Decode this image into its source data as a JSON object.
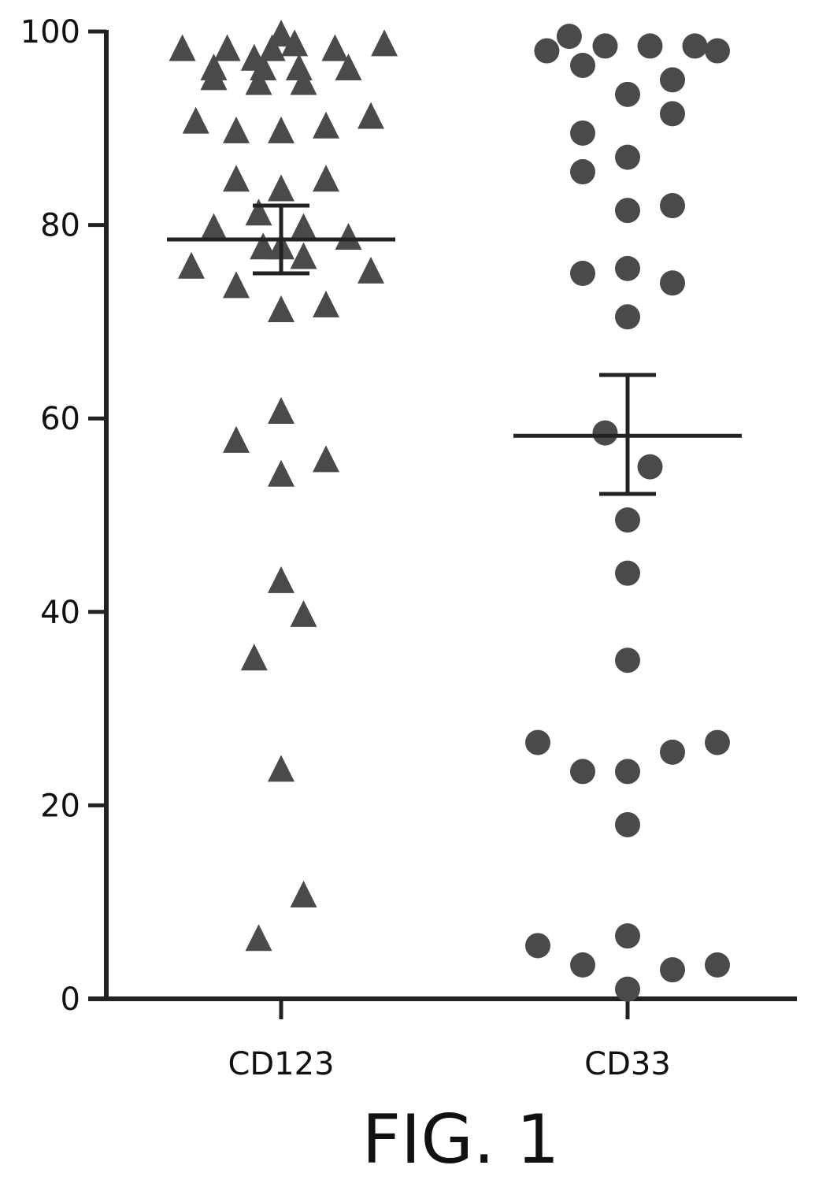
{
  "caption": "FIG. 1",
  "colors": {
    "marker": "#4a4a4a",
    "axis": "#222222",
    "text": "#111111"
  },
  "chart_data": {
    "type": "scatter",
    "title": "",
    "xlabel": "",
    "ylabel": "",
    "ylim": [
      0,
      100
    ],
    "y_ticks": [
      {
        "value": 0,
        "label": "0"
      },
      {
        "value": 20,
        "label": "20"
      },
      {
        "value": 40,
        "label": "40"
      },
      {
        "value": 60,
        "label": "60"
      },
      {
        "value": 80,
        "label": "80"
      },
      {
        "value": 100,
        "label": "100"
      }
    ],
    "categories": [
      "CD123",
      "CD33"
    ],
    "grid": false,
    "series": [
      {
        "category": "CD123",
        "marker": "triangle",
        "mean": 78.5,
        "error_low": 75.0,
        "error_high": 82.0,
        "points": [
          {
            "slot": -2.2,
            "y": 98
          },
          {
            "slot": -1.2,
            "y": 98
          },
          {
            "slot": -1.5,
            "y": 96
          },
          {
            "slot": -1.5,
            "y": 95
          },
          {
            "slot": -0.6,
            "y": 97
          },
          {
            "slot": -0.2,
            "y": 98
          },
          {
            "slot": 0.0,
            "y": 99.5
          },
          {
            "slot": 0.3,
            "y": 98.5
          },
          {
            "slot": -0.4,
            "y": 96
          },
          {
            "slot": 0.4,
            "y": 96
          },
          {
            "slot": -0.5,
            "y": 94.5
          },
          {
            "slot": 0.5,
            "y": 94.5
          },
          {
            "slot": 1.2,
            "y": 98
          },
          {
            "slot": 1.5,
            "y": 96
          },
          {
            "slot": 2.3,
            "y": 98.5
          },
          {
            "slot": -1.9,
            "y": 90.5
          },
          {
            "slot": -1.0,
            "y": 89.5
          },
          {
            "slot": 0.0,
            "y": 89.5
          },
          {
            "slot": 1.0,
            "y": 90
          },
          {
            "slot": 2.0,
            "y": 91
          },
          {
            "slot": -1.0,
            "y": 84.5
          },
          {
            "slot": 0.0,
            "y": 83.5
          },
          {
            "slot": 1.0,
            "y": 84.5
          },
          {
            "slot": -0.5,
            "y": 81
          },
          {
            "slot": -1.5,
            "y": 79.5
          },
          {
            "slot": 0.5,
            "y": 79.5
          },
          {
            "slot": -0.4,
            "y": 77.5
          },
          {
            "slot": 0.0,
            "y": 77.5
          },
          {
            "slot": 1.5,
            "y": 78.5
          },
          {
            "slot": -2.0,
            "y": 75.5
          },
          {
            "slot": 0.5,
            "y": 76.5
          },
          {
            "slot": 2.0,
            "y": 75
          },
          {
            "slot": -1.0,
            "y": 73.5
          },
          {
            "slot": 0.0,
            "y": 71
          },
          {
            "slot": 1.0,
            "y": 71.5
          },
          {
            "slot": 0.0,
            "y": 60.5
          },
          {
            "slot": -1.0,
            "y": 57.5
          },
          {
            "slot": 1.0,
            "y": 55.5
          },
          {
            "slot": 0.0,
            "y": 54
          },
          {
            "slot": 0.0,
            "y": 43
          },
          {
            "slot": 0.5,
            "y": 39.5
          },
          {
            "slot": -0.6,
            "y": 35
          },
          {
            "slot": 0.0,
            "y": 23.5
          },
          {
            "slot": 0.5,
            "y": 10.5
          },
          {
            "slot": -0.5,
            "y": 6
          }
        ]
      },
      {
        "category": "CD33",
        "marker": "circle",
        "mean": 58.2,
        "error_low": 52.2,
        "error_high": 64.5,
        "points": [
          {
            "slot": -1.8,
            "y": 98
          },
          {
            "slot": -1.3,
            "y": 99.5
          },
          {
            "slot": -0.5,
            "y": 98.5
          },
          {
            "slot": 0.5,
            "y": 98.5
          },
          {
            "slot": 1.5,
            "y": 98.5
          },
          {
            "slot": 2.0,
            "y": 98
          },
          {
            "slot": -1.0,
            "y": 96.5
          },
          {
            "slot": 1.0,
            "y": 95
          },
          {
            "slot": 0.0,
            "y": 93.5
          },
          {
            "slot": 1.0,
            "y": 91.5
          },
          {
            "slot": -1.0,
            "y": 89.5
          },
          {
            "slot": 0.0,
            "y": 87
          },
          {
            "slot": -1.0,
            "y": 85.5
          },
          {
            "slot": 1.0,
            "y": 82
          },
          {
            "slot": 0.0,
            "y": 81.5
          },
          {
            "slot": -1.0,
            "y": 75
          },
          {
            "slot": 0.0,
            "y": 75.5
          },
          {
            "slot": 1.0,
            "y": 74
          },
          {
            "slot": 0.0,
            "y": 70.5
          },
          {
            "slot": -0.5,
            "y": 58.5
          },
          {
            "slot": 0.5,
            "y": 55
          },
          {
            "slot": 0.0,
            "y": 49.5
          },
          {
            "slot": 0.0,
            "y": 44
          },
          {
            "slot": 0.0,
            "y": 35
          },
          {
            "slot": -2.0,
            "y": 26.5
          },
          {
            "slot": -1.0,
            "y": 23.5
          },
          {
            "slot": 0.0,
            "y": 23.5
          },
          {
            "slot": 1.0,
            "y": 25.5
          },
          {
            "slot": 2.0,
            "y": 26.5
          },
          {
            "slot": 0.0,
            "y": 18
          },
          {
            "slot": -2.0,
            "y": 5.5
          },
          {
            "slot": -1.0,
            "y": 3.5
          },
          {
            "slot": 0.0,
            "y": 6.5
          },
          {
            "slot": 1.0,
            "y": 3
          },
          {
            "slot": 2.0,
            "y": 3.5
          },
          {
            "slot": 0.0,
            "y": 1
          }
        ]
      }
    ]
  }
}
